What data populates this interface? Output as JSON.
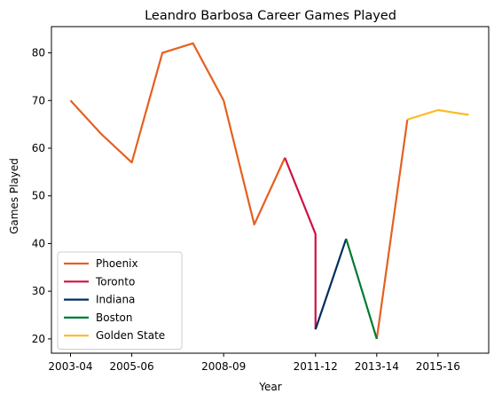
{
  "chart_data": {
    "type": "line",
    "title": "Leandro Barbosa Career Games Played",
    "xlabel": "Year",
    "ylabel": "Games Played",
    "x_ticks": [
      "2003-04",
      "2005-06",
      "2008-09",
      "2011-12",
      "2013-14",
      "2015-16"
    ],
    "y_ticks": [
      20,
      30,
      40,
      50,
      60,
      70,
      80
    ],
    "ylim": [
      17,
      85.5
    ],
    "grid": false,
    "legend_position": "bottom-left",
    "series": [
      {
        "name": "Phoenix",
        "color": "#E56020",
        "points": [
          {
            "x": "2003-04",
            "y": 70
          },
          {
            "x": "2004-05",
            "y": 63
          },
          {
            "x": "2005-06",
            "y": 57
          },
          {
            "x": "2006-07",
            "y": 80
          },
          {
            "x": "2007-08",
            "y": 82
          },
          {
            "x": "2008-09",
            "y": 70
          },
          {
            "x": "2009-10",
            "y": 44
          },
          {
            "x": "2010-11",
            "y": 58
          },
          {
            "x": "2013-14",
            "y": 20
          },
          {
            "x": "2014-15",
            "y": 66
          }
        ],
        "segments": [
          [
            0,
            7
          ],
          [
            8,
            9
          ]
        ]
      },
      {
        "name": "Toronto",
        "color": "#CE1141",
        "points": [
          {
            "x": "2010-11",
            "y": 58
          },
          {
            "x": "2011-12",
            "y": 42
          },
          {
            "x": "2011-12",
            "y": 22
          }
        ]
      },
      {
        "name": "Indiana",
        "color": "#002D62",
        "points": [
          {
            "x": "2011-12",
            "y": 22
          },
          {
            "x": "2012-13",
            "y": 41
          }
        ]
      },
      {
        "name": "Boston",
        "color": "#007A33",
        "points": [
          {
            "x": "2012-13",
            "y": 41
          },
          {
            "x": "2013-14",
            "y": 20
          }
        ]
      },
      {
        "name": "Golden State",
        "color": "#FDB927",
        "points": [
          {
            "x": "2014-15",
            "y": 66
          },
          {
            "x": "2015-16",
            "y": 68
          },
          {
            "x": "2016-17",
            "y": 67
          }
        ]
      }
    ]
  }
}
